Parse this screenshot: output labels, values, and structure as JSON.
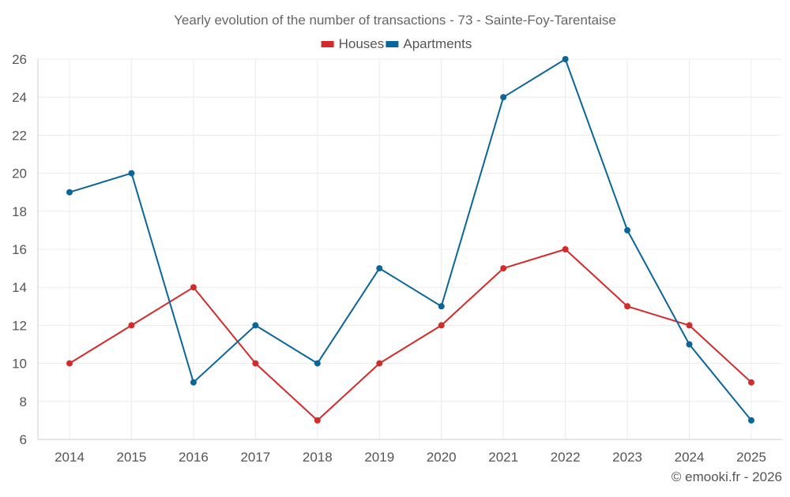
{
  "chart_data": {
    "type": "line",
    "title": "Yearly evolution of the number of transactions - 73 - Sainte-Foy-Tarentaise",
    "xlabel": "",
    "ylabel": "",
    "categories": [
      "2014",
      "2015",
      "2016",
      "2017",
      "2018",
      "2019",
      "2020",
      "2021",
      "2022",
      "2023",
      "2024",
      "2025"
    ],
    "ylim": [
      6,
      26
    ],
    "yticks": [
      6,
      8,
      10,
      12,
      14,
      16,
      18,
      20,
      22,
      24,
      26
    ],
    "grid": true,
    "legend_position": "top-center",
    "series": [
      {
        "name": "Houses",
        "color": "#d42a2a",
        "values": [
          10,
          12,
          14,
          10,
          7,
          10,
          12,
          15,
          16,
          13,
          12,
          9
        ]
      },
      {
        "name": "Apartments",
        "color": "#0a6699",
        "values": [
          19,
          20,
          9,
          12,
          10,
          15,
          13,
          24,
          26,
          17,
          11,
          7
        ]
      }
    ]
  },
  "credit": "© emooki.fr - 2026"
}
